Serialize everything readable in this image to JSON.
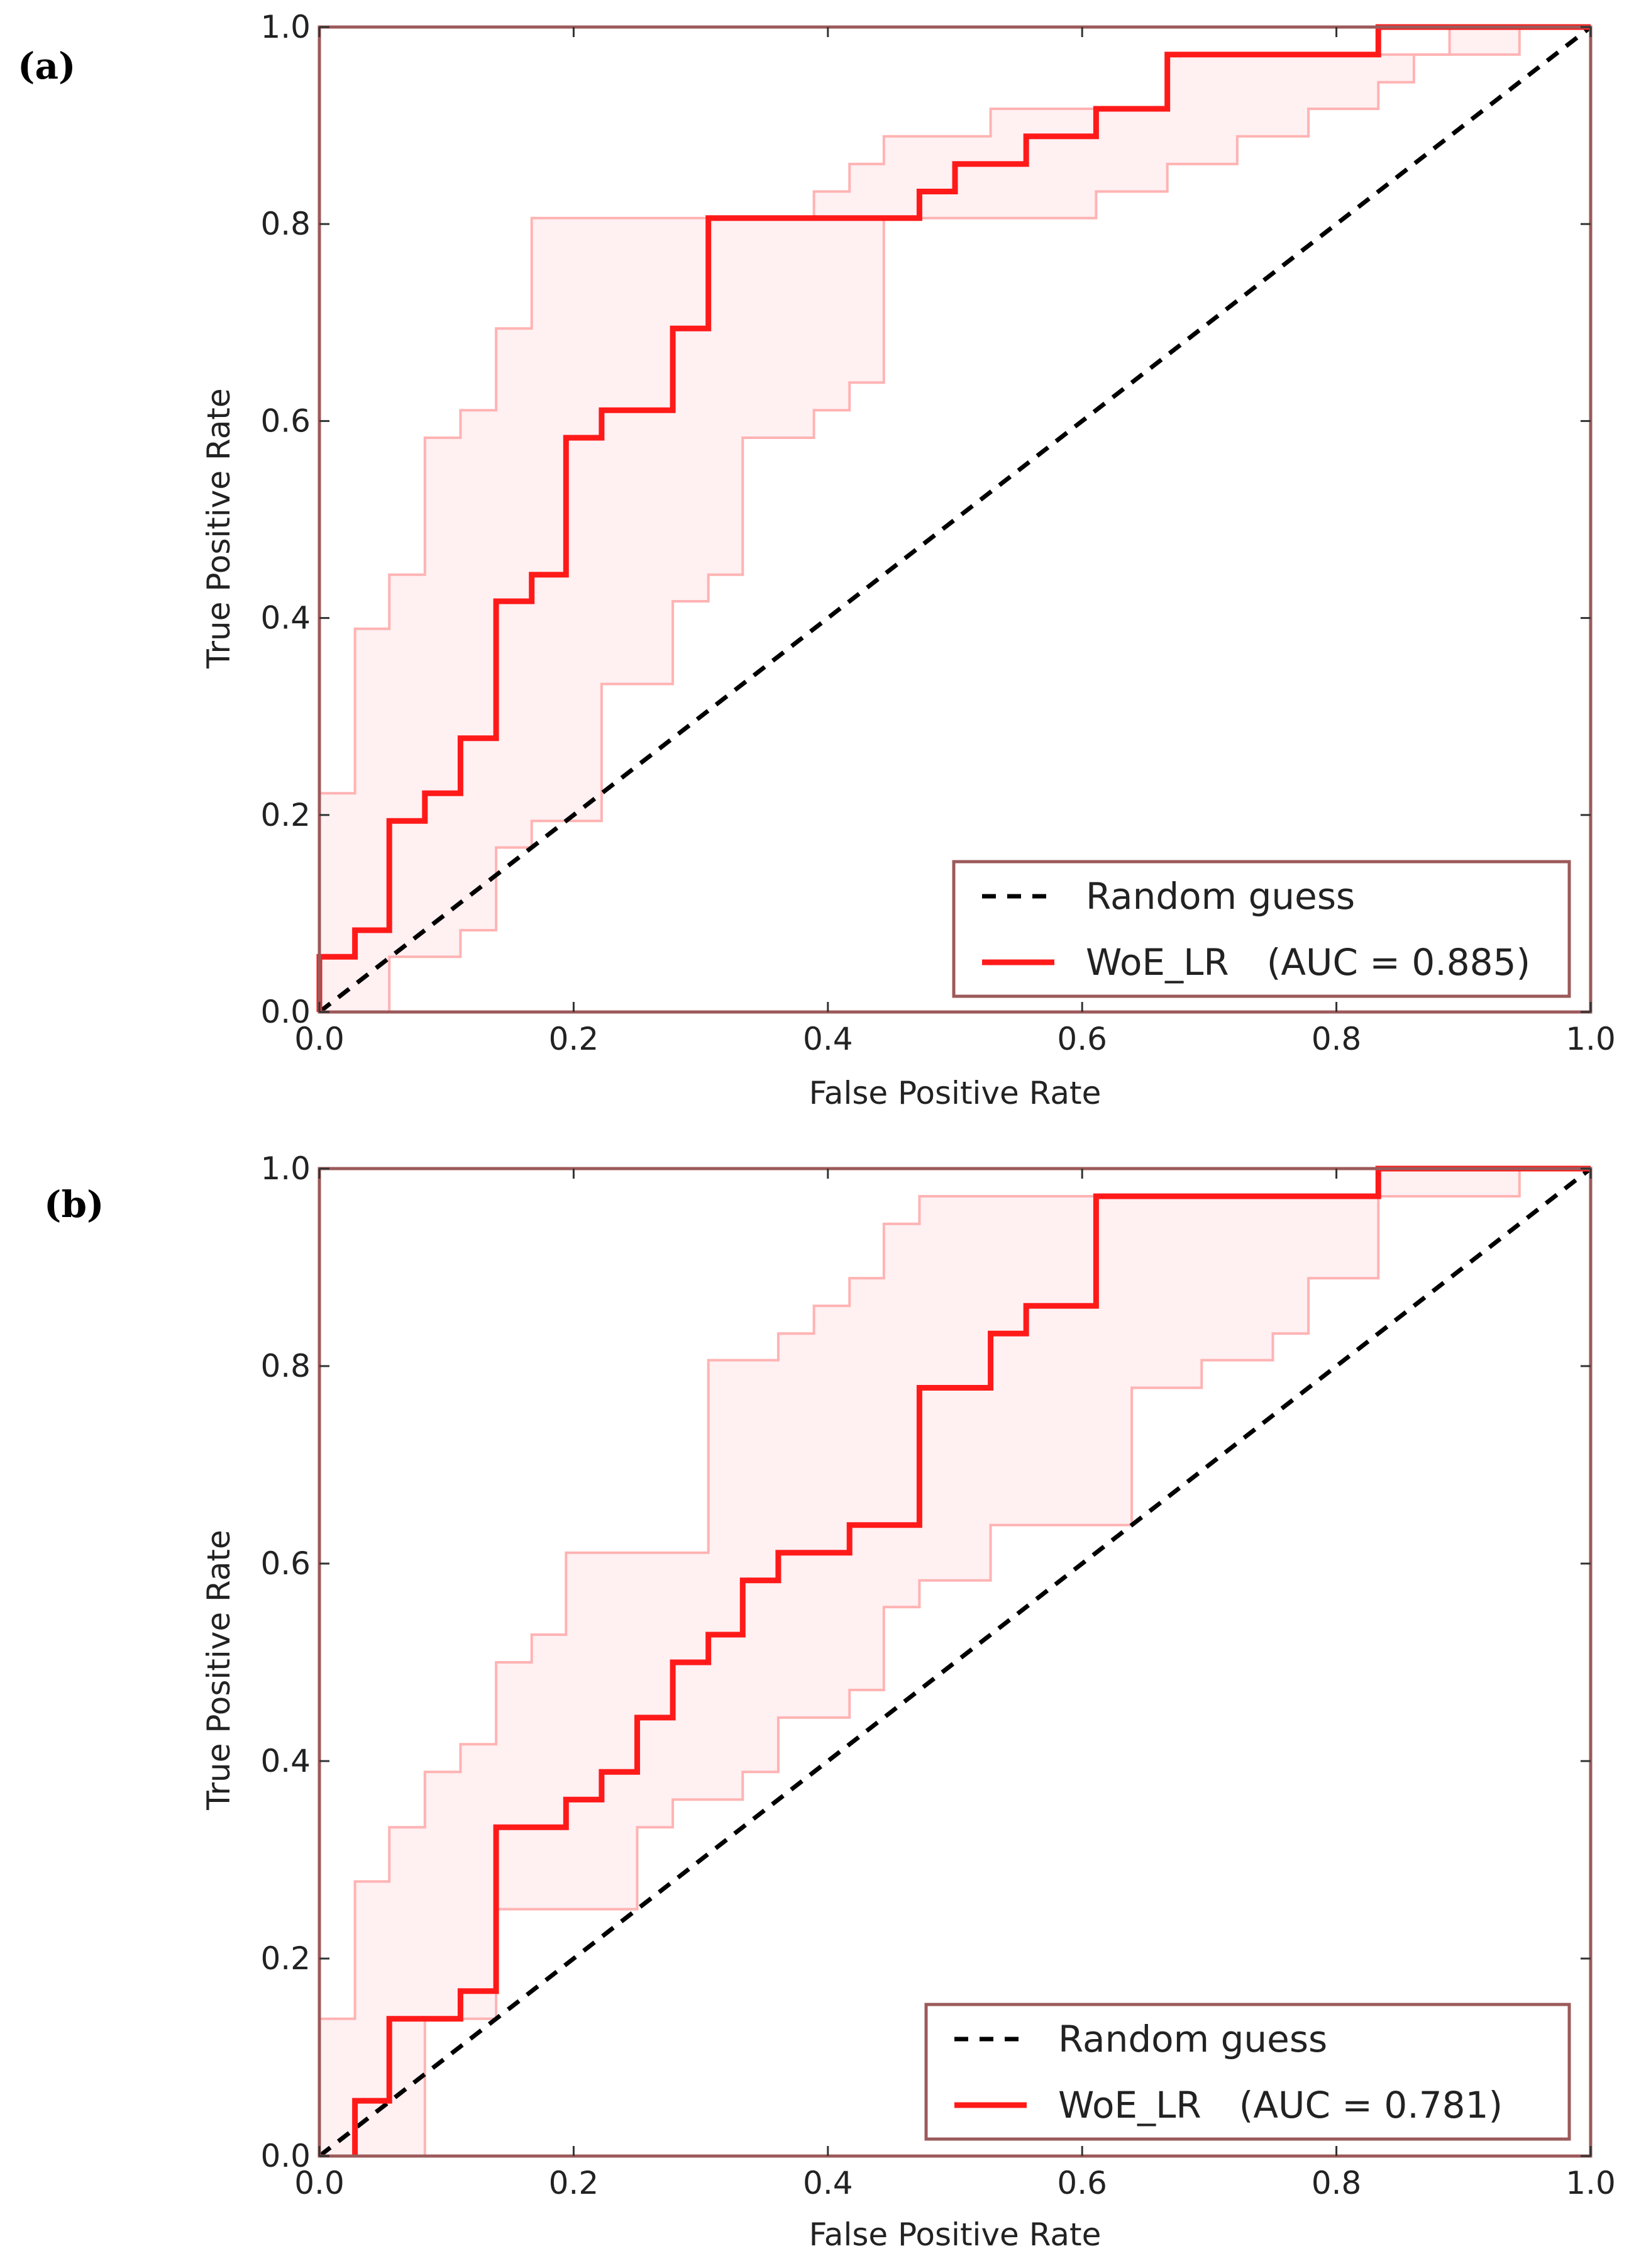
{
  "chart_data": [
    {
      "type": "line",
      "panel_label": "(a)",
      "xlabel": "False Positive Rate",
      "ylabel": "True Positive Rate",
      "xlim": [
        0,
        1
      ],
      "ylim": [
        0,
        1
      ],
      "xticks": [
        "0.0",
        "0.2",
        "0.4",
        "0.6",
        "0.8",
        "1.0"
      ],
      "yticks": [
        "0.0",
        "0.2",
        "0.4",
        "0.6",
        "0.8",
        "1.0"
      ],
      "legend_position": "lower-right",
      "series": [
        {
          "name": "Random guess",
          "style": "dashed",
          "color": "#000000",
          "x": [
            0,
            1
          ],
          "y": [
            0,
            1
          ]
        },
        {
          "name": "WoE_LR",
          "label_suffix": "(AUC = 0.885)",
          "style": "solid",
          "color": "#ff1a1a",
          "x": [
            0,
            0,
            0.028,
            0.028,
            0.055,
            0.055,
            0.083,
            0.083,
            0.111,
            0.111,
            0.139,
            0.139,
            0.167,
            0.167,
            0.194,
            0.194,
            0.222,
            0.222,
            0.278,
            0.278,
            0.306,
            0.306,
            0.472,
            0.472,
            0.5,
            0.5,
            0.556,
            0.556,
            0.611,
            0.611,
            0.667,
            0.667,
            0.833,
            0.833,
            1
          ],
          "y": [
            0,
            0.056,
            0.056,
            0.083,
            0.083,
            0.194,
            0.194,
            0.222,
            0.222,
            0.278,
            0.278,
            0.417,
            0.417,
            0.444,
            0.444,
            0.583,
            0.583,
            0.611,
            0.611,
            0.694,
            0.694,
            0.806,
            0.806,
            0.833,
            0.833,
            0.861,
            0.861,
            0.889,
            0.889,
            0.917,
            0.917,
            0.972,
            0.972,
            1,
            1
          ]
        },
        {
          "name": "",
          "role": "upper confidence band",
          "style": "thin",
          "color": "#ffb3b3",
          "x": [
            0,
            0,
            0.028,
            0.028,
            0.055,
            0.055,
            0.083,
            0.083,
            0.111,
            0.111,
            0.139,
            0.139,
            0.167,
            0.167,
            0.389,
            0.389,
            0.417,
            0.417,
            0.444,
            0.444,
            0.528,
            0.528,
            0.667,
            0.667,
            0.944,
            0.944,
            1
          ],
          "y": [
            0,
            0.222,
            0.222,
            0.389,
            0.389,
            0.444,
            0.444,
            0.583,
            0.583,
            0.611,
            0.611,
            0.694,
            0.694,
            0.806,
            0.806,
            0.833,
            0.833,
            0.861,
            0.861,
            0.889,
            0.889,
            0.917,
            0.917,
            0.972,
            0.972,
            1,
            1
          ]
        },
        {
          "name": "",
          "role": "lower confidence band",
          "style": "thin",
          "color": "#ffb3b3",
          "x": [
            0.055,
            0.055,
            0.111,
            0.111,
            0.139,
            0.139,
            0.167,
            0.167,
            0.222,
            0.222,
            0.278,
            0.278,
            0.306,
            0.306,
            0.333,
            0.333,
            0.389,
            0.389,
            0.417,
            0.417,
            0.444,
            0.444,
            0.611,
            0.611,
            0.667,
            0.667,
            0.722,
            0.722,
            0.778,
            0.778,
            0.833,
            0.833,
            0.861,
            0.861,
            0.889,
            0.889,
            0.944,
            0.944,
            1
          ],
          "y": [
            0,
            0.056,
            0.056,
            0.083,
            0.083,
            0.167,
            0.167,
            0.194,
            0.194,
            0.333,
            0.333,
            0.417,
            0.417,
            0.444,
            0.444,
            0.583,
            0.583,
            0.611,
            0.611,
            0.639,
            0.639,
            0.806,
            0.806,
            0.833,
            0.833,
            0.861,
            0.861,
            0.889,
            0.889,
            0.917,
            0.917,
            0.944,
            0.944,
            0.972,
            0.972,
            1,
            1,
            1,
            1
          ]
        }
      ]
    },
    {
      "type": "line",
      "panel_label": "(b)",
      "xlabel": "False Positive Rate",
      "ylabel": "True Positive Rate",
      "xlim": [
        0,
        1
      ],
      "ylim": [
        0,
        1
      ],
      "xticks": [
        "0.0",
        "0.2",
        "0.4",
        "0.6",
        "0.8",
        "1.0"
      ],
      "yticks": [
        "0.0",
        "0.2",
        "0.4",
        "0.6",
        "0.8",
        "1.0"
      ],
      "legend_position": "lower-right",
      "series": [
        {
          "name": "Random guess",
          "style": "dashed",
          "color": "#000000",
          "x": [
            0,
            1
          ],
          "y": [
            0,
            1
          ]
        },
        {
          "name": "WoE_LR",
          "label_suffix": "(AUC = 0.781)",
          "style": "solid",
          "color": "#ff1a1a",
          "x": [
            0.028,
            0.028,
            0.055,
            0.055,
            0.111,
            0.111,
            0.139,
            0.139,
            0.194,
            0.194,
            0.222,
            0.222,
            0.25,
            0.25,
            0.278,
            0.278,
            0.306,
            0.306,
            0.333,
            0.333,
            0.361,
            0.361,
            0.417,
            0.417,
            0.472,
            0.472,
            0.528,
            0.528,
            0.556,
            0.556,
            0.611,
            0.611,
            0.833,
            0.833,
            1
          ],
          "y": [
            0,
            0.056,
            0.056,
            0.139,
            0.139,
            0.167,
            0.167,
            0.333,
            0.333,
            0.361,
            0.361,
            0.389,
            0.389,
            0.444,
            0.444,
            0.5,
            0.5,
            0.528,
            0.528,
            0.583,
            0.583,
            0.611,
            0.611,
            0.639,
            0.639,
            0.778,
            0.778,
            0.833,
            0.833,
            0.861,
            0.861,
            0.972,
            0.972,
            1,
            1
          ]
        },
        {
          "name": "",
          "role": "upper confidence band",
          "style": "thin",
          "color": "#ffb3b3",
          "x": [
            0,
            0,
            0.028,
            0.028,
            0.055,
            0.055,
            0.083,
            0.083,
            0.111,
            0.111,
            0.139,
            0.139,
            0.167,
            0.167,
            0.194,
            0.194,
            0.306,
            0.306,
            0.361,
            0.361,
            0.389,
            0.389,
            0.417,
            0.417,
            0.444,
            0.444,
            0.472,
            0.472,
            0.833,
            0.833,
            1
          ],
          "y": [
            0,
            0.139,
            0.139,
            0.278,
            0.278,
            0.333,
            0.333,
            0.389,
            0.389,
            0.417,
            0.417,
            0.5,
            0.5,
            0.528,
            0.528,
            0.611,
            0.611,
            0.806,
            0.806,
            0.833,
            0.833,
            0.861,
            0.861,
            0.889,
            0.889,
            0.944,
            0.944,
            0.972,
            0.972,
            1,
            1
          ]
        },
        {
          "name": "",
          "role": "lower confidence band",
          "style": "thin",
          "color": "#ffb3b3",
          "x": [
            0.083,
            0.083,
            0.139,
            0.139,
            0.25,
            0.25,
            0.278,
            0.278,
            0.333,
            0.333,
            0.361,
            0.361,
            0.417,
            0.417,
            0.444,
            0.444,
            0.472,
            0.472,
            0.528,
            0.528,
            0.639,
            0.639,
            0.694,
            0.694,
            0.75,
            0.75,
            0.778,
            0.778,
            0.833,
            0.833,
            0.944,
            0.944,
            1
          ],
          "y": [
            0,
            0.139,
            0.139,
            0.25,
            0.25,
            0.333,
            0.333,
            0.361,
            0.361,
            0.389,
            0.389,
            0.444,
            0.444,
            0.472,
            0.472,
            0.556,
            0.556,
            0.583,
            0.583,
            0.639,
            0.639,
            0.778,
            0.778,
            0.806,
            0.806,
            0.833,
            0.833,
            0.889,
            0.889,
            0.972,
            0.972,
            1,
            1
          ]
        }
      ]
    }
  ]
}
